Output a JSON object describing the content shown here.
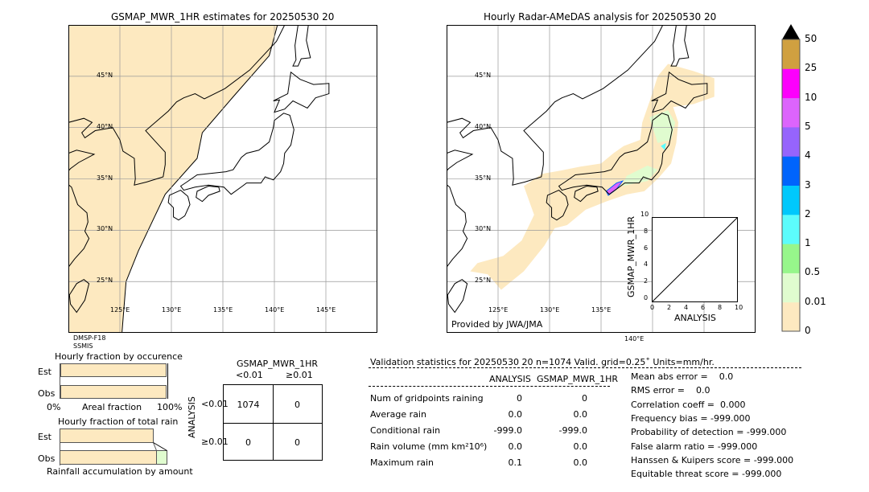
{
  "left_map": {
    "title": "GSMAP_MWR_1HR estimates for 20250530 20",
    "sensor_lines": [
      "DMSP-F18",
      "SSMIS"
    ],
    "lon_labels": [
      "125°E",
      "130°E",
      "135°E",
      "140°E",
      "145°E"
    ],
    "lat_labels": [
      "45°N",
      "40°N",
      "35°N",
      "30°N",
      "25°N"
    ]
  },
  "right_map": {
    "title": "Hourly Radar-AMeDAS analysis for 20250530 20",
    "credit": "Provided by JWA/JMA",
    "lon_labels": [
      "125°E",
      "130°E",
      "135°E",
      "140°E"
    ],
    "lat_labels": [
      "45°N",
      "40°N",
      "35°N",
      "30°N",
      "25°N"
    ]
  },
  "inset": {
    "type": "scatter",
    "xlabel": "ANALYSIS",
    "ylabel": "GSMAP_MWR_1HR",
    "xlim": [
      0,
      10
    ],
    "ylim": [
      0,
      10
    ],
    "ticks": [
      "0",
      "2",
      "4",
      "6",
      "8",
      "10"
    ]
  },
  "colorbar": {
    "labels": [
      "0",
      "0.01",
      "0.5",
      "1",
      "2",
      "3",
      "4",
      "5",
      "10",
      "25",
      "50"
    ],
    "colors": [
      "#fde9c0",
      "#e0fccf",
      "#97f68b",
      "#5cfcfc",
      "#00c8fc",
      "#0064fc",
      "#9664fc",
      "#dc64fc",
      "#fc00fc",
      "#d0a040"
    ],
    "extend_color": "#000000"
  },
  "chart_data": [
    {
      "type": "bar",
      "title": "Hourly fraction by occurence",
      "categories": [
        "Est",
        "Obs"
      ],
      "xlabel": "Areal fraction",
      "xtick_labels": [
        "0%",
        "100%"
      ],
      "values_percent": [
        99.5,
        99.5
      ]
    },
    {
      "type": "bar",
      "title": "Hourly fraction of total rain",
      "categories": [
        "Est",
        "Obs"
      ],
      "xlabel": "Rainfall accumulation by amount",
      "segments": {
        "Est": [
          {
            "class": "0.01",
            "fraction": 0.88
          }
        ],
        "Obs": [
          {
            "class": "0.01",
            "fraction": 0.9
          },
          {
            "class": "0.5",
            "fraction": 0.1
          }
        ]
      }
    },
    {
      "type": "table",
      "title": "GSMAP_MWR_1HR",
      "col_headers": [
        "<0.01",
        "≥0.01"
      ],
      "row_label": "ANALYSIS",
      "row_headers": [
        "<0.01",
        "≥0.01"
      ],
      "cells": [
        [
          "1074",
          "0"
        ],
        [
          "0",
          "0"
        ]
      ]
    }
  ],
  "stats": {
    "header": "Validation statistics for 20250530 20  n=1074 Valid. grid=0.25˚ Units=mm/hr.",
    "col_headers": [
      "ANALYSIS",
      "GSMAP_MWR_1HR"
    ],
    "rows": [
      {
        "label": "Num of gridpoints raining",
        "a": "0",
        "b": "0"
      },
      {
        "label": "Average rain",
        "a": "0.0",
        "b": "0.0"
      },
      {
        "label": "Conditional rain",
        "a": "-999.0",
        "b": "-999.0"
      },
      {
        "label": "Rain volume (mm km²10⁶)",
        "a": "0.0",
        "b": "0.0"
      },
      {
        "label": "Maximum rain",
        "a": "0.1",
        "b": "0.0"
      }
    ],
    "scores": [
      "Mean abs error =    0.0",
      "RMS error =    0.0",
      "Correlation coeff =  0.000",
      "Frequency bias = -999.000",
      "Probability of detection = -999.000",
      "False alarm ratio = -999.000",
      "Hanssen & Kuipers score = -999.000",
      "Equitable threat score = -999.000"
    ]
  }
}
